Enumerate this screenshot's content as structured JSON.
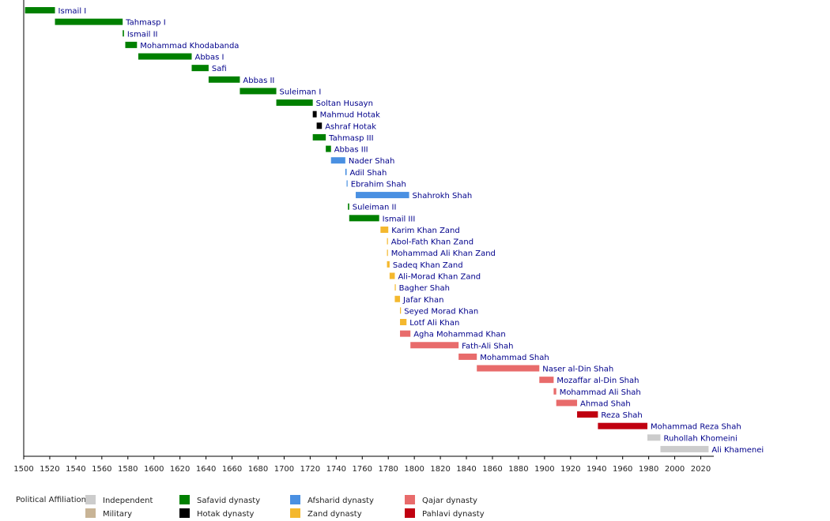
{
  "chart_data": {
    "type": "timeline",
    "xlim": [
      1500,
      2030
    ],
    "xticks": [
      1500,
      1520,
      1540,
      1560,
      1580,
      1600,
      1620,
      1640,
      1660,
      1680,
      1700,
      1720,
      1740,
      1760,
      1780,
      1800,
      1820,
      1840,
      1860,
      1880,
      1900,
      1920,
      1940,
      1960,
      1980,
      2000,
      2020
    ],
    "legend_title": "Political Affiliation:",
    "affiliations": [
      {
        "name": "Independent",
        "color": "#cccccc"
      },
      {
        "name": "Military",
        "color": "#c8b496"
      },
      {
        "name": "Safavid dynasty",
        "color": "#008000"
      },
      {
        "name": "Hotak dynasty",
        "color": "#000000"
      },
      {
        "name": "Afsharid dynasty",
        "color": "#4a90e2"
      },
      {
        "name": "Zand dynasty",
        "color": "#f4b82e"
      },
      {
        "name": "Qajar dynasty",
        "color": "#e86b6b"
      },
      {
        "name": "Pahlavi dynasty",
        "color": "#c00010"
      }
    ],
    "rulers": [
      {
        "name": "Ismail I",
        "start": 1501,
        "end": 1524,
        "affiliation": "Safavid dynasty"
      },
      {
        "name": "Tahmasp I",
        "start": 1524,
        "end": 1576,
        "affiliation": "Safavid dynasty"
      },
      {
        "name": "Ismail II",
        "start": 1576,
        "end": 1577,
        "affiliation": "Safavid dynasty"
      },
      {
        "name": "Mohammad Khodabanda",
        "start": 1578,
        "end": 1587,
        "affiliation": "Safavid dynasty"
      },
      {
        "name": "Abbas I",
        "start": 1588,
        "end": 1629,
        "affiliation": "Safavid dynasty"
      },
      {
        "name": "Safi",
        "start": 1629,
        "end": 1642,
        "affiliation": "Safavid dynasty"
      },
      {
        "name": "Abbas II",
        "start": 1642,
        "end": 1666,
        "affiliation": "Safavid dynasty"
      },
      {
        "name": "Suleiman I",
        "start": 1666,
        "end": 1694,
        "affiliation": "Safavid dynasty"
      },
      {
        "name": "Soltan Husayn",
        "start": 1694,
        "end": 1722,
        "affiliation": "Safavid dynasty"
      },
      {
        "name": "Mahmud Hotak",
        "start": 1722,
        "end": 1725,
        "affiliation": "Hotak dynasty"
      },
      {
        "name": "Ashraf Hotak",
        "start": 1725,
        "end": 1729,
        "affiliation": "Hotak dynasty"
      },
      {
        "name": "Tahmasp III",
        "start": 1722,
        "end": 1732,
        "affiliation": "Safavid dynasty"
      },
      {
        "name": "Abbas III",
        "start": 1732,
        "end": 1736,
        "affiliation": "Safavid dynasty"
      },
      {
        "name": "Nader Shah",
        "start": 1736,
        "end": 1747,
        "affiliation": "Afsharid dynasty"
      },
      {
        "name": "Adil Shah",
        "start": 1747,
        "end": 1748,
        "affiliation": "Afsharid dynasty"
      },
      {
        "name": "Ebrahim Shah",
        "start": 1748,
        "end": 1748,
        "affiliation": "Afsharid dynasty"
      },
      {
        "name": "Shahrokh Shah",
        "start": 1755,
        "end": 1796,
        "affiliation": "Afsharid dynasty"
      },
      {
        "name": "Suleiman II",
        "start": 1749,
        "end": 1750,
        "affiliation": "Safavid dynasty"
      },
      {
        "name": "Ismail III",
        "start": 1750,
        "end": 1773,
        "affiliation": "Safavid dynasty"
      },
      {
        "name": "Karim Khan Zand",
        "start": 1774,
        "end": 1780,
        "affiliation": "Zand dynasty"
      },
      {
        "name": "Abol-Fath Khan Zand",
        "start": 1779,
        "end": 1779,
        "affiliation": "Zand dynasty"
      },
      {
        "name": "Mohammad Ali Khan Zand",
        "start": 1779,
        "end": 1779,
        "affiliation": "Zand dynasty"
      },
      {
        "name": "Sadeq Khan Zand",
        "start": 1779,
        "end": 1781,
        "affiliation": "Zand dynasty"
      },
      {
        "name": "Ali-Morad Khan Zand",
        "start": 1781,
        "end": 1785,
        "affiliation": "Zand dynasty"
      },
      {
        "name": "Bagher Shah",
        "start": 1785,
        "end": 1785,
        "affiliation": "Zand dynasty"
      },
      {
        "name": "Jafar Khan",
        "start": 1785,
        "end": 1789,
        "affiliation": "Zand dynasty"
      },
      {
        "name": "Seyed Morad Khan",
        "start": 1789,
        "end": 1789,
        "affiliation": "Zand dynasty"
      },
      {
        "name": "Lotf Ali Khan",
        "start": 1789,
        "end": 1794,
        "affiliation": "Zand dynasty"
      },
      {
        "name": "Agha Mohammad Khan",
        "start": 1789,
        "end": 1797,
        "affiliation": "Qajar dynasty"
      },
      {
        "name": "Fath-Ali Shah",
        "start": 1797,
        "end": 1834,
        "affiliation": "Qajar dynasty"
      },
      {
        "name": "Mohammad Shah",
        "start": 1834,
        "end": 1848,
        "affiliation": "Qajar dynasty"
      },
      {
        "name": "Naser al-Din Shah",
        "start": 1848,
        "end": 1896,
        "affiliation": "Qajar dynasty"
      },
      {
        "name": "Mozaffar al-Din Shah",
        "start": 1896,
        "end": 1907,
        "affiliation": "Qajar dynasty"
      },
      {
        "name": "Mohammad Ali Shah",
        "start": 1907,
        "end": 1909,
        "affiliation": "Qajar dynasty"
      },
      {
        "name": "Ahmad Shah",
        "start": 1909,
        "end": 1925,
        "affiliation": "Qajar dynasty"
      },
      {
        "name": "Reza Shah",
        "start": 1925,
        "end": 1941,
        "affiliation": "Pahlavi dynasty"
      },
      {
        "name": "Mohammad Reza Shah",
        "start": 1941,
        "end": 1979,
        "affiliation": "Pahlavi dynasty"
      },
      {
        "name": "Ruhollah Khomeini",
        "start": 1979,
        "end": 1989,
        "affiliation": "Independent"
      },
      {
        "name": "Ali Khamenei",
        "start": 1989,
        "end": 2026,
        "affiliation": "Independent"
      }
    ]
  }
}
